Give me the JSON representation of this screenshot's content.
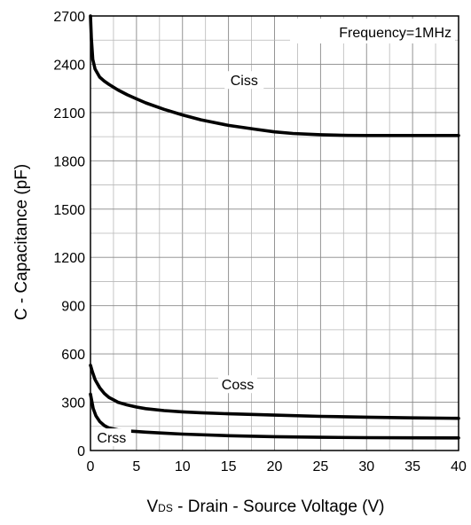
{
  "chart_data": {
    "type": "line",
    "title": "",
    "xlabel_prefix": "V",
    "xlabel_sub": "DS",
    "xlabel_rest": " - Drain - Source Voltage (V)",
    "ylabel": "C - Capacitance (pF)",
    "xlim": [
      0,
      40
    ],
    "ylim": [
      0,
      2700
    ],
    "xticks": [
      0,
      5,
      10,
      15,
      20,
      25,
      30,
      35,
      40
    ],
    "yticks": [
      0,
      300,
      600,
      900,
      1200,
      1500,
      1800,
      2100,
      2400,
      2700
    ],
    "grid": true,
    "annotation": "Frequency=1MHz",
    "series": [
      {
        "name": "Ciss",
        "x": [
          0,
          0.1,
          0.25,
          0.5,
          1,
          1.5,
          2,
          3,
          4,
          5,
          6,
          8,
          10,
          12,
          15,
          18,
          20,
          22,
          25,
          28,
          30,
          32,
          35,
          38,
          40
        ],
        "y": [
          2700,
          2560,
          2430,
          2370,
          2320,
          2295,
          2275,
          2240,
          2210,
          2185,
          2160,
          2120,
          2085,
          2055,
          2020,
          1995,
          1980,
          1970,
          1962,
          1958,
          1957,
          1957,
          1957,
          1957,
          1957
        ]
      },
      {
        "name": "Coss",
        "x": [
          0,
          0.2,
          0.5,
          1,
          1.5,
          2,
          3,
          4,
          5,
          6,
          8,
          10,
          12,
          15,
          20,
          25,
          30,
          35,
          40
        ],
        "y": [
          530,
          490,
          440,
          390,
          355,
          330,
          300,
          283,
          270,
          260,
          248,
          240,
          235,
          228,
          220,
          212,
          207,
          203,
          200
        ]
      },
      {
        "name": "Crss",
        "x": [
          0,
          0.3,
          0.6,
          1,
          1.5,
          2,
          3,
          4,
          5,
          6,
          8,
          10,
          15,
          20,
          25,
          30,
          35,
          40
        ],
        "y": [
          350,
          260,
          215,
          180,
          155,
          140,
          128,
          122,
          118,
          114,
          108,
          102,
          92,
          86,
          82,
          80,
          79,
          78
        ]
      }
    ]
  }
}
